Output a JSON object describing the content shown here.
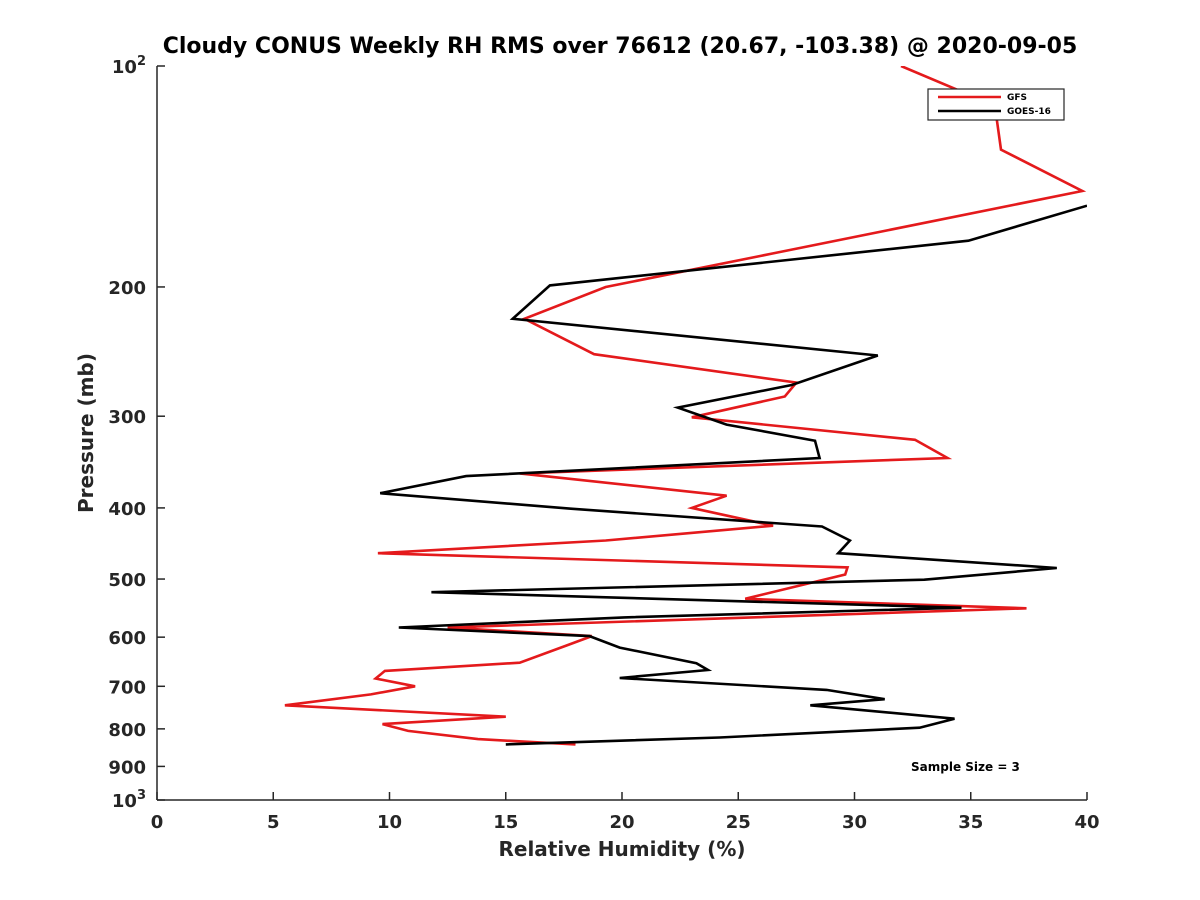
{
  "chart_data": {
    "type": "line",
    "title": "Cloudy CONUS Weekly RH RMS over 76612 (20.67, -103.38) @ 2020-09-05",
    "xlabel": "Relative Humidity (%)",
    "ylabel": "Pressure (mb)",
    "xlim": [
      0,
      40
    ],
    "ylim": [
      100,
      1000
    ],
    "yscale": "log",
    "y_direction": "reversed",
    "x_ticks": [
      0,
      5,
      10,
      15,
      20,
      25,
      30,
      35,
      40
    ],
    "x_tick_labels": [
      "0",
      "5",
      "10",
      "15",
      "20",
      "25",
      "30",
      "35",
      "40"
    ],
    "y_ticks": [
      100,
      200,
      300,
      400,
      500,
      600,
      700,
      800,
      900,
      1000
    ],
    "y_tick_labels": [
      {
        "base": "10",
        "exp": "2"
      },
      {
        "base": "200",
        "exp": ""
      },
      {
        "base": "300",
        "exp": ""
      },
      {
        "base": "400",
        "exp": ""
      },
      {
        "base": "500",
        "exp": ""
      },
      {
        "base": "600",
        "exp": ""
      },
      {
        "base": "700",
        "exp": ""
      },
      {
        "base": "800",
        "exp": ""
      },
      {
        "base": "900",
        "exp": ""
      },
      {
        "base": "10",
        "exp": "3"
      }
    ],
    "legend_position": "top-right",
    "annotation": "Sample Size = 3",
    "series": [
      {
        "name": "GFS",
        "color": "#e41a1c",
        "points": [
          [
            32.0,
            100
          ],
          [
            34.5,
            108
          ],
          [
            36.0,
            116
          ],
          [
            36.1,
            117
          ],
          [
            36.3,
            130
          ],
          [
            39.8,
            148
          ],
          [
            26.5,
            180
          ],
          [
            19.3,
            200
          ],
          [
            15.8,
            221
          ],
          [
            18.8,
            247
          ],
          [
            27.5,
            270
          ],
          [
            27.0,
            282
          ],
          [
            23.0,
            301
          ],
          [
            32.6,
            323
          ],
          [
            34.0,
            342
          ],
          [
            15.6,
            359
          ],
          [
            24.5,
            385
          ],
          [
            23.0,
            400
          ],
          [
            26.5,
            423
          ],
          [
            19.3,
            443
          ],
          [
            9.5,
            461
          ],
          [
            29.7,
            482
          ],
          [
            29.6,
            493
          ],
          [
            25.3,
            532
          ],
          [
            37.4,
            548
          ],
          [
            12.5,
            582
          ],
          [
            18.7,
            598
          ],
          [
            17.6,
            616
          ],
          [
            15.6,
            650
          ],
          [
            9.8,
            667
          ],
          [
            9.4,
            683
          ],
          [
            11.1,
            700
          ],
          [
            9.2,
            718
          ],
          [
            5.5,
            743
          ],
          [
            15.0,
            770
          ],
          [
            9.7,
            788
          ],
          [
            10.8,
            805
          ],
          [
            13.8,
            826
          ],
          [
            18.0,
            840
          ]
        ]
      },
      {
        "name": "GOES-16",
        "color": "#000000",
        "points": [
          [
            40.0,
            155
          ],
          [
            34.9,
            173
          ],
          [
            16.9,
            199
          ],
          [
            15.3,
            221
          ],
          [
            31.0,
            248
          ],
          [
            27.3,
            272
          ],
          [
            22.4,
            292
          ],
          [
            24.5,
            308
          ],
          [
            28.3,
            324
          ],
          [
            28.5,
            342
          ],
          [
            13.3,
            362
          ],
          [
            9.6,
            382
          ],
          [
            17.8,
            401
          ],
          [
            28.6,
            424
          ],
          [
            29.8,
            443
          ],
          [
            29.3,
            461
          ],
          [
            38.7,
            483
          ],
          [
            33.0,
            501
          ],
          [
            11.8,
            521
          ],
          [
            34.6,
            547
          ],
          [
            20.1,
            564
          ],
          [
            10.4,
            582
          ],
          [
            18.6,
            598
          ],
          [
            19.9,
            620
          ],
          [
            23.2,
            651
          ],
          [
            23.7,
            665
          ],
          [
            19.9,
            682
          ],
          [
            28.8,
            708
          ],
          [
            31.3,
            729
          ],
          [
            28.1,
            743
          ],
          [
            34.3,
            775
          ],
          [
            32.8,
            797
          ],
          [
            24.2,
            822
          ],
          [
            15.0,
            840
          ]
        ]
      }
    ]
  }
}
